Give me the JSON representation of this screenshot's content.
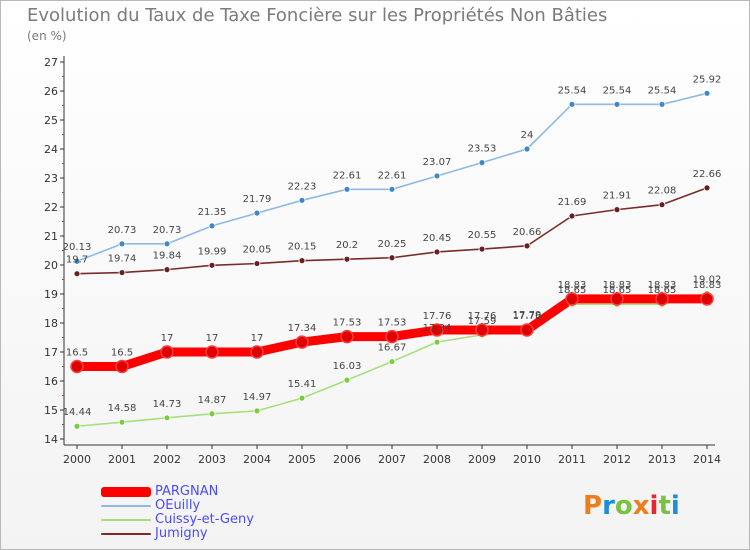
{
  "title": "Evolution du Taux de Taxe Foncière sur les Propriétés Non Bâties",
  "subtitle": "(en %)",
  "logo": {
    "text": "Proxiti",
    "colors": [
      "#ef7d1a",
      "#1b8fd8",
      "#7cc242",
      "#ef7d1a",
      "#e8262f",
      "#7cc242",
      "#1b8fd8"
    ]
  },
  "chart_data": {
    "type": "line",
    "x": [
      2000,
      2001,
      2002,
      2003,
      2004,
      2005,
      2006,
      2007,
      2008,
      2009,
      2010,
      2011,
      2012,
      2013,
      2014
    ],
    "ylim": [
      14,
      27
    ],
    "yticks": [
      14,
      15,
      16,
      17,
      18,
      19,
      20,
      21,
      22,
      23,
      24,
      25,
      26,
      27
    ],
    "grid": false,
    "legend_position": "bottom-left",
    "series": [
      {
        "name": "Cuissy-et-Geny",
        "color": "#a6df7b",
        "marker_color": "#7ccc3f",
        "values": [
          14.44,
          14.58,
          14.73,
          14.87,
          14.97,
          15.41,
          16.03,
          16.67,
          17.34,
          17.59,
          17.79,
          18.65,
          18.65,
          18.65,
          19.02
        ],
        "labels": [
          "14.44",
          "14.58",
          "14.73",
          "14.87",
          "14.97",
          "15.41",
          "16.03",
          "16.67",
          "17.34",
          "17.59",
          "17.79",
          "18.65",
          "18.65",
          "18.65",
          "19.02"
        ]
      },
      {
        "name": "Jumigny",
        "color": "#7a2c2c",
        "marker_color": "#6a1e1e",
        "values": [
          19.7,
          19.74,
          19.84,
          19.99,
          20.05,
          20.15,
          20.2,
          20.25,
          20.45,
          20.55,
          20.66,
          21.69,
          21.91,
          22.08,
          22.66
        ],
        "labels": [
          "19.7",
          "19.74",
          "19.84",
          "19.99",
          "20.05",
          "20.15",
          "20.2",
          "20.25",
          "20.45",
          "20.55",
          "20.66",
          "21.69",
          "21.91",
          "22.08",
          "22.66"
        ]
      },
      {
        "name": "OEuilly",
        "color": "#8fb9e3",
        "marker_color": "#3f87c9",
        "values": [
          20.13,
          20.73,
          20.73,
          21.35,
          21.79,
          22.23,
          22.61,
          22.61,
          23.07,
          23.53,
          24,
          25.54,
          25.54,
          25.54,
          25.92
        ],
        "labels": [
          "20.13",
          "20.73",
          "20.73",
          "21.35",
          "21.79",
          "22.23",
          "22.61",
          "22.61",
          "23.07",
          "23.53",
          "24",
          "25.54",
          "25.54",
          "25.54",
          "25.92"
        ]
      },
      {
        "name": "PARGNAN",
        "color": "#ff0000",
        "marker_color": "#dd0000",
        "values": [
          16.5,
          16.5,
          17,
          17,
          17,
          17.34,
          17.53,
          17.53,
          17.76,
          17.76,
          17.76,
          18.83,
          18.83,
          18.83,
          18.83
        ],
        "labels": [
          "16.5",
          "16.5",
          "17",
          "17",
          "17",
          "17.34",
          "17.53",
          "17.53",
          "17.76",
          "17.76",
          "17.76",
          "18.83",
          "18.83",
          "18.83",
          "18.83"
        ]
      }
    ],
    "legend": [
      {
        "name": "PARGNAN",
        "color": "#ff0000",
        "thickness": 10
      },
      {
        "name": "OEuilly",
        "color": "#8fb9e3",
        "thickness": 2
      },
      {
        "name": "Cuissy-et-Geny",
        "color": "#a6df7b",
        "thickness": 2
      },
      {
        "name": "Jumigny",
        "color": "#7a2c2c",
        "thickness": 2
      }
    ]
  }
}
